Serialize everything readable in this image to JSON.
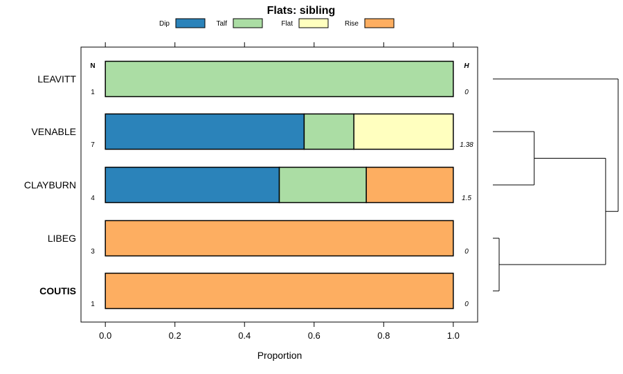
{
  "chart_data": {
    "type": "bar",
    "orientation": "horizontal",
    "stacked": true,
    "title": "Flats: sibling",
    "xlabel": "Proportion",
    "ylabel": "",
    "xlim": [
      -0.07,
      1.07
    ],
    "xticks": [
      0.0,
      0.2,
      0.4,
      0.6,
      0.8,
      1.0
    ],
    "xtick_labels": [
      "0.0",
      "0.2",
      "0.4",
      "0.6",
      "0.8",
      "1.0"
    ],
    "n_header": "N",
    "h_header": "H",
    "legend_position": "top",
    "grid": false,
    "categories": [
      "LEAVITT",
      "VENABLE",
      "CLAYBURN",
      "LIBEG",
      "COUTIS"
    ],
    "bold_category": "COUTIS",
    "n_values": [
      "1",
      "7",
      "4",
      "3",
      "1"
    ],
    "h_values": [
      "0",
      "1.38",
      "1.5",
      "0",
      "0"
    ],
    "series": [
      {
        "name": "Dip",
        "color": "#2b83ba",
        "values": [
          0,
          0.5714,
          0.5,
          0,
          0
        ]
      },
      {
        "name": "Talf",
        "color": "#abdda4",
        "values": [
          1,
          0.1429,
          0.25,
          0,
          0
        ]
      },
      {
        "name": "Flat",
        "color": "#ffffbf",
        "values": [
          0,
          0.2857,
          0,
          0,
          0
        ]
      },
      {
        "name": "Rise",
        "color": "#fdae61",
        "values": [
          0,
          0,
          0.25,
          1,
          1
        ]
      }
    ],
    "dendrogram": {
      "leaf_order": [
        "LEAVITT",
        "VENABLE",
        "CLAYBURN",
        "LIBEG",
        "COUTIS"
      ],
      "merges": [
        {
          "a": "LIBEG",
          "b": "COUTIS",
          "height": 0.05
        },
        {
          "a": "VENABLE",
          "b": "CLAYBURN",
          "height": 0.33
        },
        {
          "a": "LIBEG+COUTIS",
          "b": "VENABLE+CLAYBURN",
          "height": 0.9
        },
        {
          "a": "LEAVITT",
          "b": "REST",
          "height": 1.0
        }
      ]
    }
  }
}
